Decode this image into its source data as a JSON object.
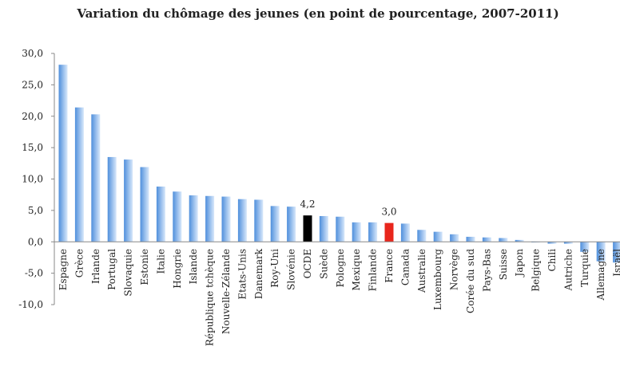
{
  "chart_data": {
    "type": "bar",
    "title": "Variation du chômage des jeunes (en point de pourcentage, 2007-2011)",
    "categories": [
      "Espagne",
      "Grèce",
      "Irlande",
      "Portugal",
      "Slovaquie",
      "Estonie",
      "Italie",
      "Hongrie",
      "Islande",
      "République tchèque",
      "Nouvelle-Zélande",
      "Etats-Unis",
      "Danemark",
      "Roy-Uni",
      "Slovénie",
      "OCDE",
      "Suède",
      "Pologne",
      "Mexique",
      "Finlande",
      "France",
      "Canada",
      "Australie",
      "Luxembourg",
      "Norvège",
      "Corée du sud",
      "Pays-Bas",
      "Suisse",
      "Japon",
      "Belgique",
      "Chili",
      "Autriche",
      "Turquie",
      "Allemagne",
      "Israël"
    ],
    "values": [
      28.2,
      21.4,
      20.3,
      13.5,
      13.1,
      11.9,
      8.8,
      8.0,
      7.4,
      7.3,
      7.2,
      6.8,
      6.7,
      5.7,
      5.6,
      4.2,
      4.1,
      4.0,
      3.1,
      3.1,
      3.0,
      2.9,
      1.9,
      1.6,
      1.2,
      0.8,
      0.7,
      0.6,
      0.3,
      -0.1,
      -0.3,
      -0.3,
      -1.6,
      -3.1,
      -3.3
    ],
    "value_labels": [
      null,
      null,
      null,
      null,
      null,
      null,
      null,
      null,
      null,
      null,
      null,
      null,
      null,
      null,
      null,
      "4,2",
      null,
      null,
      null,
      null,
      "3,0",
      null,
      null,
      null,
      null,
      null,
      null,
      null,
      null,
      null,
      null,
      null,
      null,
      null,
      null
    ],
    "colors": [
      "#4f8fdc",
      "#4f8fdc",
      "#4f8fdc",
      "#4f8fdc",
      "#4f8fdc",
      "#4f8fdc",
      "#4f8fdc",
      "#4f8fdc",
      "#4f8fdc",
      "#4f8fdc",
      "#4f8fdc",
      "#4f8fdc",
      "#4f8fdc",
      "#4f8fdc",
      "#4f8fdc",
      "#000000",
      "#4f8fdc",
      "#4f8fdc",
      "#4f8fdc",
      "#4f8fdc",
      "#e8261c",
      "#4f8fdc",
      "#4f8fdc",
      "#4f8fdc",
      "#4f8fdc",
      "#4f8fdc",
      "#4f8fdc",
      "#4f8fdc",
      "#4f8fdc",
      "#4f8fdc",
      "#4f8fdc",
      "#4f8fdc",
      "#4f8fdc",
      "#4f8fdc",
      "#4f8fdc"
    ],
    "ylim": [
      -10,
      30
    ],
    "yticks": [
      {
        "value": -10,
        "label": "-10,0"
      },
      {
        "value": -5,
        "label": "-5,0"
      },
      {
        "value": 0,
        "label": "0,0"
      },
      {
        "value": 5,
        "label": "5,0"
      },
      {
        "value": 10,
        "label": "10,0"
      },
      {
        "value": 15,
        "label": "15,0"
      },
      {
        "value": 20,
        "label": "20,0"
      },
      {
        "value": 25,
        "label": "25,0"
      },
      {
        "value": 30,
        "label": "30,0"
      }
    ],
    "grid": false
  }
}
